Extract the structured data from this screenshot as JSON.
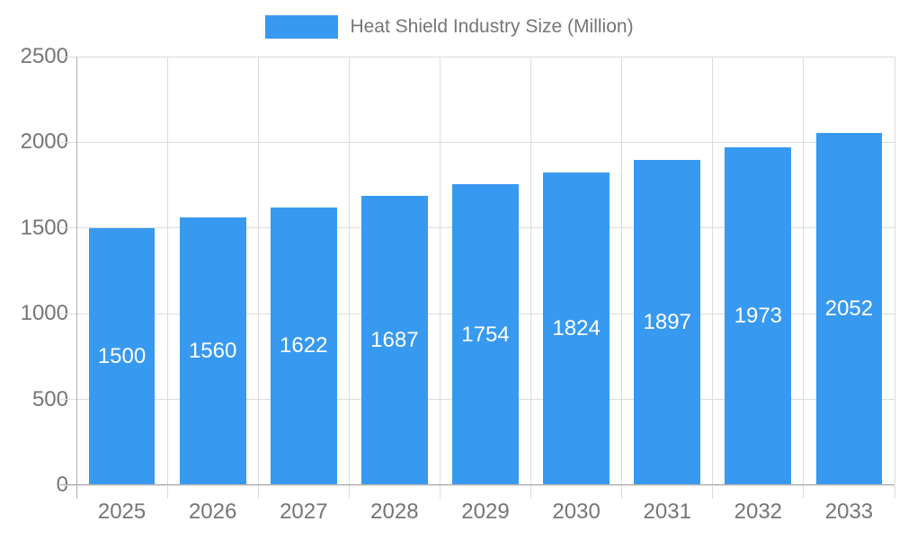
{
  "legend": {
    "label": "Heat Shield Industry Size (Million)"
  },
  "chart_data": {
    "type": "bar",
    "title": "Heat Shield Industry Size (Million)",
    "categories": [
      "2025",
      "2026",
      "2027",
      "2028",
      "2029",
      "2030",
      "2031",
      "2032",
      "2033"
    ],
    "values": [
      1500,
      1560,
      1622,
      1687,
      1754,
      1824,
      1897,
      1973,
      2052
    ],
    "xlabel": "",
    "ylabel": "",
    "ylim": [
      0,
      2500
    ],
    "yticks": [
      0,
      500,
      1000,
      1500,
      2000,
      2500
    ],
    "grid": true,
    "legend_position": "top",
    "bar_color": "#3899F0",
    "value_label_color": "#ffffff",
    "axis_label_color": "#757575",
    "gridline_color": "#dcdcdc",
    "axis_line_color": "#b0b0b0"
  }
}
